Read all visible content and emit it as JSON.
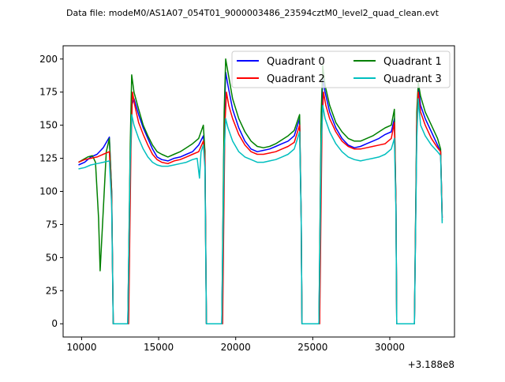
{
  "chart_data": {
    "type": "line",
    "title": "Data file: modeM0/AS1A07_054T01_9000003486_23594cztM0_level2_quad_clean.evt",
    "x_offset_label": "+3.188e8",
    "xlim": [
      8800,
      34200
    ],
    "ylim": [
      -10,
      210
    ],
    "x_ticks": [
      10000,
      15000,
      20000,
      25000,
      30000
    ],
    "x_tick_labels": [
      "10000",
      "15000",
      "20000",
      "25000",
      "30000"
    ],
    "y_ticks": [
      0,
      25,
      50,
      75,
      100,
      125,
      150,
      175,
      200
    ],
    "y_tick_labels": [
      "0",
      "25",
      "50",
      "75",
      "100",
      "125",
      "150",
      "175",
      "200"
    ],
    "grid": false,
    "legend_placement": "top-right",
    "legend_columns": 2,
    "series": [
      {
        "name": "Quadrant 0",
        "color": "#0000ff",
        "points": [
          [
            9800,
            120
          ],
          [
            10200,
            122
          ],
          [
            10600,
            126
          ],
          [
            11000,
            128
          ],
          [
            11400,
            133
          ],
          [
            11800,
            141
          ],
          [
            11950,
            100
          ],
          [
            12050,
            0
          ],
          [
            13000,
            0
          ],
          [
            13150,
            120
          ],
          [
            13250,
            165
          ],
          [
            13400,
            170
          ],
          [
            13700,
            158
          ],
          [
            14000,
            148
          ],
          [
            14300,
            140
          ],
          [
            14600,
            132
          ],
          [
            14900,
            126
          ],
          [
            15200,
            124
          ],
          [
            15600,
            123
          ],
          [
            16000,
            125
          ],
          [
            16400,
            126
          ],
          [
            16800,
            128
          ],
          [
            17200,
            130
          ],
          [
            17600,
            135
          ],
          [
            17900,
            142
          ],
          [
            18000,
            130
          ],
          [
            18100,
            0
          ],
          [
            19100,
            0
          ],
          [
            19250,
            150
          ],
          [
            19350,
            190
          ],
          [
            19500,
            180
          ],
          [
            19800,
            162
          ],
          [
            20200,
            148
          ],
          [
            20600,
            138
          ],
          [
            21000,
            132
          ],
          [
            21400,
            130
          ],
          [
            21800,
            131
          ],
          [
            22200,
            132
          ],
          [
            22600,
            134
          ],
          [
            23000,
            136
          ],
          [
            23400,
            138
          ],
          [
            23800,
            142
          ],
          [
            24150,
            155
          ],
          [
            24250,
            80
          ],
          [
            24300,
            0
          ],
          [
            25400,
            0
          ],
          [
            25550,
            150
          ],
          [
            25650,
            185
          ],
          [
            25800,
            175
          ],
          [
            26100,
            160
          ],
          [
            26500,
            148
          ],
          [
            26900,
            140
          ],
          [
            27300,
            135
          ],
          [
            27700,
            133
          ],
          [
            28100,
            134
          ],
          [
            28500,
            136
          ],
          [
            28900,
            138
          ],
          [
            29300,
            140
          ],
          [
            29700,
            143
          ],
          [
            30100,
            145
          ],
          [
            30300,
            155
          ],
          [
            30400,
            90
          ],
          [
            30450,
            0
          ],
          [
            31600,
            0
          ],
          [
            31750,
            150
          ],
          [
            31850,
            180
          ],
          [
            32000,
            165
          ],
          [
            32300,
            155
          ],
          [
            32700,
            145
          ],
          [
            33100,
            135
          ],
          [
            33300,
            130
          ],
          [
            33400,
            80
          ]
        ]
      },
      {
        "name": "Quadrant 1",
        "color": "#008000",
        "points": [
          [
            9800,
            122
          ],
          [
            10100,
            124
          ],
          [
            10400,
            126
          ],
          [
            10700,
            127
          ],
          [
            10900,
            122
          ],
          [
            11100,
            80
          ],
          [
            11200,
            40
          ],
          [
            11400,
            85
          ],
          [
            11600,
            130
          ],
          [
            11800,
            140
          ],
          [
            11950,
            100
          ],
          [
            12050,
            0
          ],
          [
            13000,
            0
          ],
          [
            13150,
            130
          ],
          [
            13250,
            188
          ],
          [
            13400,
            175
          ],
          [
            13700,
            162
          ],
          [
            14000,
            150
          ],
          [
            14300,
            142
          ],
          [
            14600,
            135
          ],
          [
            14900,
            130
          ],
          [
            15200,
            128
          ],
          [
            15600,
            126
          ],
          [
            16000,
            128
          ],
          [
            16400,
            130
          ],
          [
            16800,
            133
          ],
          [
            17200,
            136
          ],
          [
            17600,
            140
          ],
          [
            17900,
            150
          ],
          [
            18000,
            130
          ],
          [
            18100,
            0
          ],
          [
            19100,
            0
          ],
          [
            19250,
            160
          ],
          [
            19350,
            200
          ],
          [
            19500,
            190
          ],
          [
            19800,
            170
          ],
          [
            20200,
            155
          ],
          [
            20600,
            145
          ],
          [
            21000,
            138
          ],
          [
            21400,
            134
          ],
          [
            21800,
            133
          ],
          [
            22200,
            134
          ],
          [
            22600,
            136
          ],
          [
            23000,
            139
          ],
          [
            23400,
            142
          ],
          [
            23800,
            146
          ],
          [
            24150,
            158
          ],
          [
            24250,
            80
          ],
          [
            24300,
            0
          ],
          [
            25400,
            0
          ],
          [
            25550,
            160
          ],
          [
            25650,
            195
          ],
          [
            25800,
            180
          ],
          [
            26100,
            165
          ],
          [
            26500,
            152
          ],
          [
            26900,
            145
          ],
          [
            27300,
            140
          ],
          [
            27700,
            138
          ],
          [
            28100,
            138
          ],
          [
            28500,
            140
          ],
          [
            28900,
            142
          ],
          [
            29300,
            145
          ],
          [
            29700,
            148
          ],
          [
            30100,
            150
          ],
          [
            30300,
            162
          ],
          [
            30400,
            90
          ],
          [
            30450,
            0
          ],
          [
            31600,
            0
          ],
          [
            31750,
            160
          ],
          [
            31850,
            182
          ],
          [
            32000,
            172
          ],
          [
            32300,
            160
          ],
          [
            32700,
            150
          ],
          [
            33100,
            140
          ],
          [
            33300,
            132
          ],
          [
            33400,
            78
          ]
        ]
      },
      {
        "name": "Quadrant 2",
        "color": "#ff0000",
        "points": [
          [
            9800,
            122
          ],
          [
            10200,
            124
          ],
          [
            10600,
            125
          ],
          [
            11000,
            126
          ],
          [
            11400,
            128
          ],
          [
            11800,
            130
          ],
          [
            11950,
            95
          ],
          [
            12050,
            0
          ],
          [
            13050,
            0
          ],
          [
            13200,
            130
          ],
          [
            13300,
            175
          ],
          [
            13450,
            165
          ],
          [
            13700,
            152
          ],
          [
            14000,
            143
          ],
          [
            14300,
            135
          ],
          [
            14600,
            128
          ],
          [
            14900,
            124
          ],
          [
            15200,
            122
          ],
          [
            15600,
            121
          ],
          [
            16000,
            123
          ],
          [
            16400,
            124
          ],
          [
            16800,
            126
          ],
          [
            17200,
            128
          ],
          [
            17600,
            130
          ],
          [
            17900,
            138
          ],
          [
            18000,
            125
          ],
          [
            18100,
            0
          ],
          [
            19150,
            0
          ],
          [
            19300,
            150
          ],
          [
            19400,
            175
          ],
          [
            19550,
            165
          ],
          [
            19800,
            155
          ],
          [
            20200,
            143
          ],
          [
            20600,
            135
          ],
          [
            21000,
            130
          ],
          [
            21400,
            128
          ],
          [
            21800,
            128
          ],
          [
            22200,
            129
          ],
          [
            22600,
            130
          ],
          [
            23000,
            132
          ],
          [
            23400,
            134
          ],
          [
            23800,
            137
          ],
          [
            24150,
            150
          ],
          [
            24250,
            80
          ],
          [
            24300,
            0
          ],
          [
            25450,
            0
          ],
          [
            25600,
            150
          ],
          [
            25700,
            175
          ],
          [
            25850,
            165
          ],
          [
            26100,
            155
          ],
          [
            26500,
            145
          ],
          [
            26900,
            138
          ],
          [
            27300,
            134
          ],
          [
            27700,
            132
          ],
          [
            28100,
            132
          ],
          [
            28500,
            133
          ],
          [
            28900,
            134
          ],
          [
            29300,
            135
          ],
          [
            29700,
            136
          ],
          [
            30100,
            140
          ],
          [
            30300,
            152
          ],
          [
            30400,
            90
          ],
          [
            30450,
            0
          ],
          [
            31600,
            0
          ],
          [
            31750,
            150
          ],
          [
            31850,
            175
          ],
          [
            32000,
            160
          ],
          [
            32300,
            150
          ],
          [
            32700,
            140
          ],
          [
            33100,
            133
          ],
          [
            33300,
            130
          ],
          [
            33400,
            80
          ]
        ]
      },
      {
        "name": "Quadrant 3",
        "color": "#00bfbf",
        "points": [
          [
            9800,
            117
          ],
          [
            10200,
            118
          ],
          [
            10600,
            120
          ],
          [
            11000,
            121
          ],
          [
            11400,
            122
          ],
          [
            11800,
            123
          ],
          [
            11950,
            90
          ],
          [
            12050,
            0
          ],
          [
            13000,
            0
          ],
          [
            13150,
            120
          ],
          [
            13250,
            158
          ],
          [
            13400,
            150
          ],
          [
            13700,
            140
          ],
          [
            14000,
            132
          ],
          [
            14300,
            126
          ],
          [
            14600,
            122
          ],
          [
            14900,
            120
          ],
          [
            15200,
            119
          ],
          [
            15600,
            119
          ],
          [
            16000,
            120
          ],
          [
            16400,
            121
          ],
          [
            16800,
            122
          ],
          [
            17200,
            124
          ],
          [
            17500,
            125
          ],
          [
            17650,
            110
          ],
          [
            17750,
            130
          ],
          [
            17900,
            135
          ],
          [
            18000,
            118
          ],
          [
            18100,
            0
          ],
          [
            19100,
            0
          ],
          [
            19250,
            130
          ],
          [
            19350,
            155
          ],
          [
            19500,
            148
          ],
          [
            19800,
            138
          ],
          [
            20200,
            130
          ],
          [
            20600,
            126
          ],
          [
            21000,
            124
          ],
          [
            21400,
            122
          ],
          [
            21800,
            122
          ],
          [
            22200,
            123
          ],
          [
            22600,
            124
          ],
          [
            23000,
            126
          ],
          [
            23400,
            128
          ],
          [
            23800,
            132
          ],
          [
            24150,
            145
          ],
          [
            24250,
            80
          ],
          [
            24300,
            0
          ],
          [
            25400,
            0
          ],
          [
            25550,
            135
          ],
          [
            25650,
            165
          ],
          [
            25800,
            155
          ],
          [
            26100,
            145
          ],
          [
            26500,
            136
          ],
          [
            26900,
            130
          ],
          [
            27300,
            126
          ],
          [
            27700,
            124
          ],
          [
            28100,
            123
          ],
          [
            28500,
            124
          ],
          [
            28900,
            125
          ],
          [
            29300,
            126
          ],
          [
            29700,
            128
          ],
          [
            30100,
            132
          ],
          [
            30300,
            140
          ],
          [
            30400,
            85
          ],
          [
            30450,
            0
          ],
          [
            31600,
            0
          ],
          [
            31750,
            140
          ],
          [
            31850,
            170
          ],
          [
            32000,
            150
          ],
          [
            32300,
            142
          ],
          [
            32700,
            135
          ],
          [
            33100,
            130
          ],
          [
            33300,
            127
          ],
          [
            33400,
            76
          ]
        ]
      }
    ]
  }
}
